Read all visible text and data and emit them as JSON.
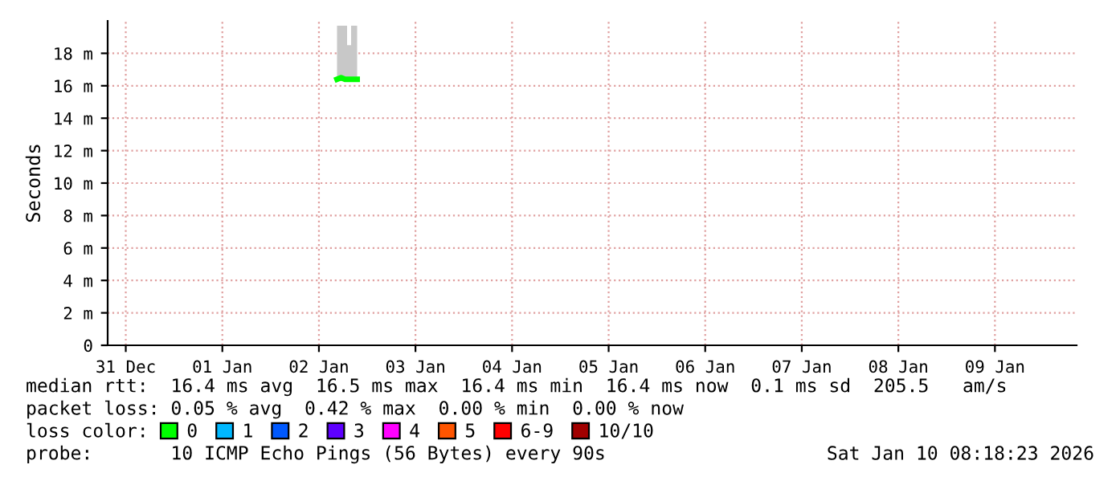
{
  "chart_data": {
    "type": "line",
    "ylabel": "Seconds",
    "xlim": [
      "2025-12-31T07:30",
      "2026-01-10T08:18"
    ],
    "xticks": [
      {
        "value": "2025-12-31T12:00",
        "label": "31 Dec"
      },
      {
        "value": "2026-01-01T12:00",
        "label": "01 Jan"
      },
      {
        "value": "2026-01-02T12:00",
        "label": "02 Jan"
      },
      {
        "value": "2026-01-03T12:00",
        "label": "03 Jan"
      },
      {
        "value": "2026-01-04T12:00",
        "label": "04 Jan"
      },
      {
        "value": "2026-01-05T12:00",
        "label": "05 Jan"
      },
      {
        "value": "2026-01-06T12:00",
        "label": "06 Jan"
      },
      {
        "value": "2026-01-07T12:00",
        "label": "07 Jan"
      },
      {
        "value": "2026-01-08T12:00",
        "label": "08 Jan"
      },
      {
        "value": "2026-01-09T12:00",
        "label": "09 Jan"
      }
    ],
    "ylim": [
      0,
      20
    ],
    "yticks": [
      0,
      {
        "value": 2,
        "label": "2 m"
      },
      {
        "value": 4,
        "label": "4 m"
      },
      {
        "value": 6,
        "label": "6 m"
      },
      {
        "value": 8,
        "label": "8 m"
      },
      {
        "value": 10,
        "label": "10 m"
      },
      {
        "value": 12,
        "label": "12 m"
      },
      {
        "value": 14,
        "label": "14 m"
      },
      {
        "value": 16,
        "label": "16 m"
      },
      {
        "value": 18,
        "label": "18 m"
      }
    ],
    "grid": true,
    "legend": "bottom",
    "line_style": "solid",
    "marker": "none",
    "series": [
      {
        "name": "0",
        "color": "#00ff00",
        "x": [
          "2026-01-02T16:30",
          "2026-01-02T17:30",
          "2026-01-02T18:30",
          "2026-01-02T19:30",
          "2026-01-02T20:30",
          "2026-01-02T21:30"
        ],
        "values": [
          16.4,
          16.5,
          16.4,
          16.4,
          16.4,
          16.4
        ],
        "lower": [
          16.3,
          16.3,
          16.3,
          16.3,
          16.3,
          16.3
        ],
        "upper": [
          19.7,
          19.7,
          19.7,
          18.5,
          19.7,
          19.7
        ]
      },
      {
        "name": "1",
        "color": "#00b8ff"
      },
      {
        "name": "2",
        "color": "#0059ff"
      },
      {
        "name": "3",
        "color": "#5e00ff"
      },
      {
        "name": "4",
        "color": "#ff00ff"
      },
      {
        "name": "5",
        "color": "#ff5500"
      },
      {
        "name": "6-9",
        "color": "#ff0000"
      },
      {
        "name": "10/10",
        "color": "#a10000"
      }
    ],
    "annotations": [
      "median rtt:  16.4 ms avg  16.5 ms max  16.4 ms min  16.4 ms now  0.1 ms sd  205.5   am/s",
      "packet loss: 0.05 % avg  0.42 % max  0.00 % min  0.00 % now",
      "loss color:",
      "probe:       10 ICMP Echo Pings (56 Bytes) every 90s",
      "Sat Jan 10 08:18:23 2026"
    ]
  }
}
